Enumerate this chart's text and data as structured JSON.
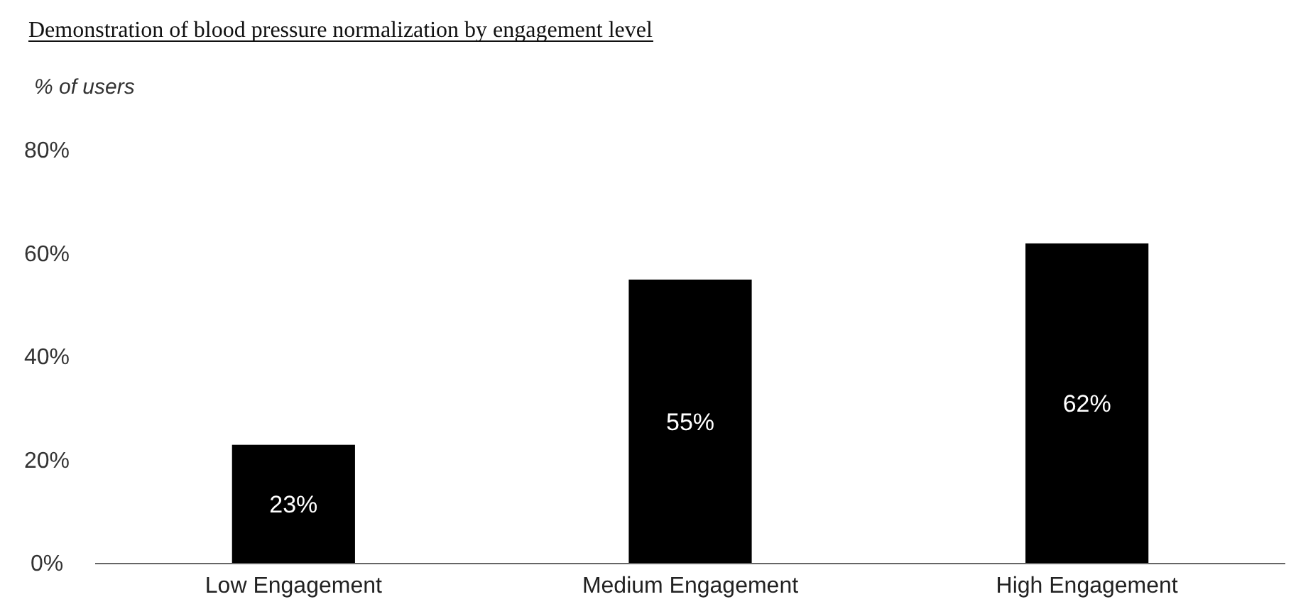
{
  "chart_data": {
    "type": "bar",
    "title": "Demonstration of blood pressure normalization by engagement level",
    "ylabel": "% of users",
    "categories": [
      "Low Engagement",
      "Medium Engagement",
      "High Engagement"
    ],
    "values": [
      23,
      55,
      62
    ],
    "color": "#000000",
    "value_labels": [
      "23%",
      "55%",
      "62%"
    ],
    "ylim": [
      0,
      80
    ],
    "yticks": [
      {
        "value": 0,
        "label": "0%"
      },
      {
        "value": 20,
        "label": "20%"
      },
      {
        "value": 40,
        "label": "40%"
      },
      {
        "value": 60,
        "label": "60%"
      },
      {
        "value": 80,
        "label": "80%"
      }
    ],
    "grid": false
  }
}
